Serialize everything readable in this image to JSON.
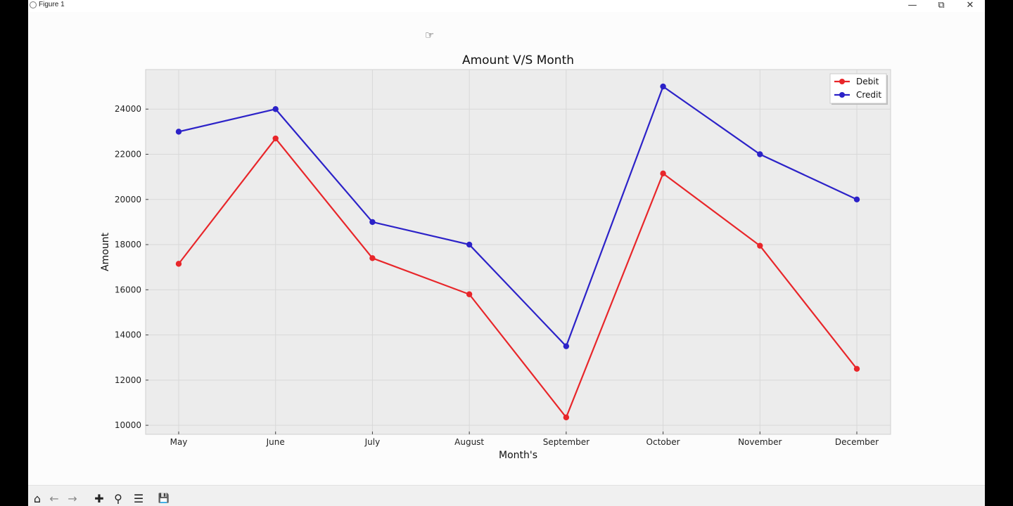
{
  "window": {
    "title": "Figure 1",
    "minimize_glyph": "—",
    "restore_glyph": "⧉",
    "close_glyph": "✕"
  },
  "toolbar": {
    "items": [
      {
        "name": "home-icon",
        "glyph": "⌂"
      },
      {
        "name": "back-arrow-icon",
        "glyph": "←"
      },
      {
        "name": "forward-arrow-icon",
        "glyph": "→"
      },
      {
        "name": "pan-icon",
        "glyph": "✚"
      },
      {
        "name": "zoom-icon",
        "glyph": "⚲"
      },
      {
        "name": "configure-subplots-icon",
        "glyph": "☰"
      },
      {
        "name": "save-icon",
        "glyph": "💾"
      }
    ]
  },
  "chart_data": {
    "type": "line",
    "title": "Amount V/S Month",
    "xlabel": "Month's",
    "ylabel": "Amount",
    "categories": [
      "May",
      "June",
      "July",
      "August",
      "September",
      "October",
      "November",
      "December"
    ],
    "series": [
      {
        "name": "Debit",
        "color": "#e8262a",
        "values": [
          17150,
          22700,
          17400,
          15800,
          10350,
          21150,
          17950,
          12500
        ]
      },
      {
        "name": "Credit",
        "color": "#2c22c8",
        "values": [
          23000,
          24000,
          19000,
          18000,
          13500,
          25000,
          22000,
          20000
        ]
      }
    ],
    "ylim": [
      9600,
      25750
    ],
    "yticks": [
      10000,
      12000,
      14000,
      16000,
      18000,
      20000,
      22000,
      24000
    ],
    "grid": true,
    "legend_position": "top-right",
    "plot_background": "#ececec"
  }
}
